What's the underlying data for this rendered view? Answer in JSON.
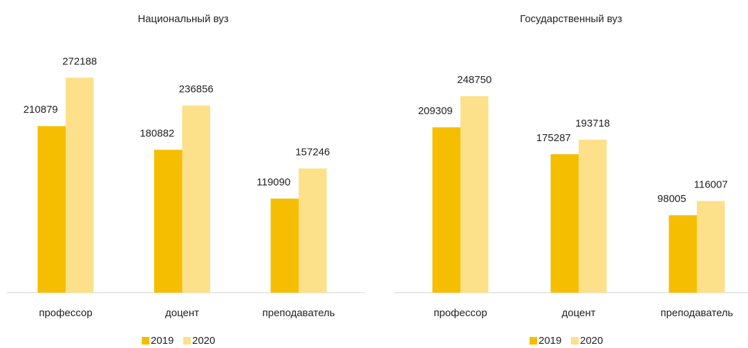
{
  "chart_data": [
    {
      "type": "bar",
      "title": "Национальный вуз",
      "categories": [
        "профессор",
        "доцент",
        "преподаватель"
      ],
      "series": [
        {
          "name": "2019",
          "color": "#f5be00",
          "values": [
            210879,
            180882,
            119090
          ]
        },
        {
          "name": "2020",
          "color": "#fde08a",
          "values": [
            272188,
            236856,
            157246
          ]
        }
      ]
    },
    {
      "type": "bar",
      "title": "Государственный вуз",
      "categories": [
        "профессор",
        "доцент",
        "преподаватель"
      ],
      "series": [
        {
          "name": "2019",
          "color": "#f5be00",
          "values": [
            209309,
            175287,
            98005
          ]
        },
        {
          "name": "2020",
          "color": "#fde08a",
          "values": [
            248750,
            193718,
            116007
          ]
        }
      ]
    }
  ]
}
